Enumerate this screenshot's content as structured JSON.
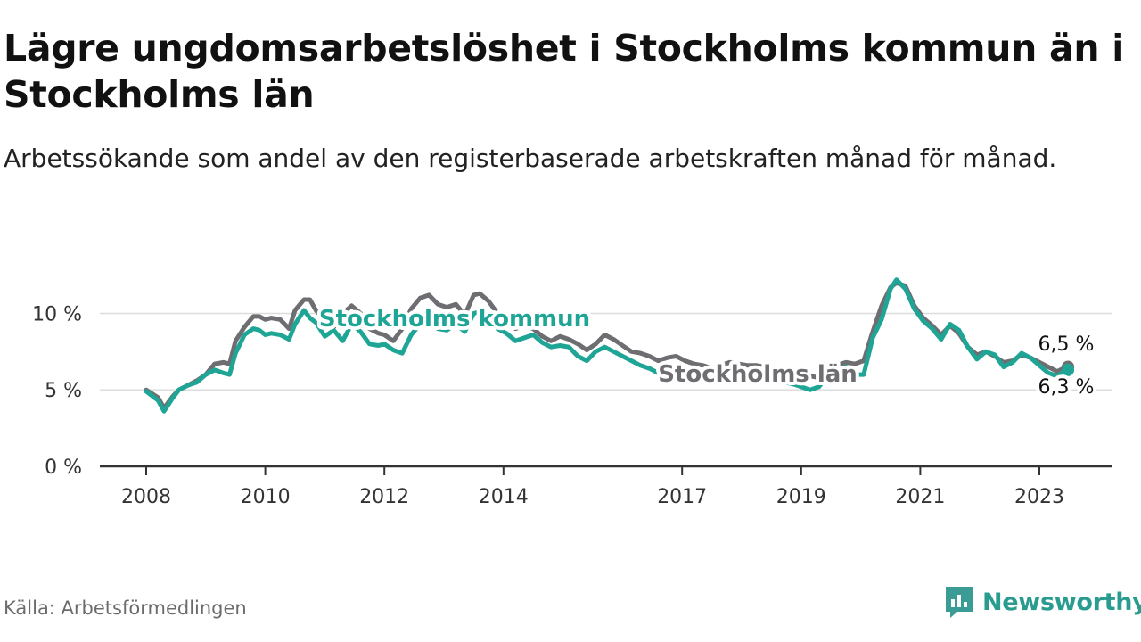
{
  "title": "Lägre ungdomsarbetslöshet i Stockholms kommun än i Stockholms län",
  "subtitle": "Arbetssökande som andel av den registerbaserade arbetskraften månad för månad.",
  "source": "Källa: Arbetsförmedlingen",
  "brand": {
    "name": "Newsworthy",
    "icon": "newsworthy-logo-icon",
    "color": "#3a9c94"
  },
  "colors": {
    "kommun": "#1fa595",
    "lan": "#6e6e72",
    "grid": "#dddddd",
    "axis": "#333333"
  },
  "chart_data": {
    "type": "line",
    "title": "Lägre ungdomsarbetslöshet i Stockholms kommun än i Stockholms län",
    "xlabel": "",
    "ylabel": "",
    "ylim": [
      0,
      13
    ],
    "xlim": [
      2007.7,
      2024.0
    ],
    "y_ticks": [
      0,
      5,
      10
    ],
    "y_tick_labels": [
      "0 %",
      "5 %",
      "10 %"
    ],
    "x_ticks": [
      2008,
      2010,
      2012,
      2014,
      2017,
      2019,
      2021,
      2023
    ],
    "x_tick_labels": [
      "2008",
      "2010",
      "2012",
      "2014",
      "2017",
      "2019",
      "2021",
      "2023"
    ],
    "gridlines": true,
    "series": [
      {
        "name": "Stockholms län",
        "label": "Stockholms län",
        "end_label": "6,5 %",
        "x": [
          2008.0,
          2008.2,
          2008.3,
          2008.45,
          2008.55,
          2008.7,
          2008.85,
          2009.0,
          2009.15,
          2009.3,
          2009.4,
          2009.5,
          2009.65,
          2009.8,
          2009.9,
          2010.0,
          2010.1,
          2010.25,
          2010.4,
          2010.5,
          2010.65,
          2010.75,
          2010.85,
          2011.0,
          2011.15,
          2011.3,
          2011.45,
          2011.6,
          2011.75,
          2011.9,
          2012.0,
          2012.15,
          2012.3,
          2012.45,
          2012.6,
          2012.75,
          2012.9,
          2013.05,
          2013.2,
          2013.35,
          2013.5,
          2013.6,
          2013.75,
          2013.9,
          2014.05,
          2014.2,
          2014.35,
          2014.5,
          2014.65,
          2014.8,
          2014.95,
          2015.1,
          2015.25,
          2015.4,
          2015.55,
          2015.7,
          2015.85,
          2016.0,
          2016.15,
          2016.3,
          2016.45,
          2016.6,
          2016.75,
          2016.9,
          2017.05,
          2017.2,
          2017.35,
          2017.5,
          2017.65,
          2017.8,
          2017.95,
          2018.1,
          2018.25,
          2018.4,
          2018.55,
          2018.7,
          2018.85,
          2019.0,
          2019.15,
          2019.3,
          2019.45,
          2019.6,
          2019.75,
          2019.9,
          2020.05,
          2020.2,
          2020.35,
          2020.5,
          2020.6,
          2020.75,
          2020.9,
          2021.05,
          2021.2,
          2021.35,
          2021.5,
          2021.65,
          2021.8,
          2021.95,
          2022.1,
          2022.25,
          2022.4,
          2022.55,
          2022.7,
          2022.85,
          2023.0,
          2023.15,
          2023.3,
          2023.45
        ],
        "values": [
          5.0,
          4.5,
          3.8,
          4.6,
          5.0,
          5.3,
          5.6,
          6.0,
          6.7,
          6.8,
          6.7,
          8.2,
          9.1,
          9.8,
          9.8,
          9.6,
          9.7,
          9.6,
          9.0,
          10.2,
          10.9,
          10.9,
          10.2,
          9.5,
          9.1,
          10.0,
          10.5,
          10.0,
          9.0,
          8.7,
          8.6,
          8.2,
          9.0,
          10.3,
          11.0,
          11.2,
          10.6,
          10.4,
          10.6,
          9.9,
          11.2,
          11.3,
          10.8,
          10.0,
          9.5,
          9.0,
          9.2,
          9.0,
          8.5,
          8.2,
          8.5,
          8.3,
          8.0,
          7.6,
          8.0,
          8.6,
          8.3,
          7.9,
          7.5,
          7.4,
          7.2,
          6.9,
          7.1,
          7.2,
          6.9,
          6.7,
          6.6,
          6.4,
          6.6,
          6.8,
          6.7,
          6.6,
          6.6,
          6.5,
          6.3,
          6.4,
          6.3,
          6.2,
          5.9,
          5.8,
          6.4,
          6.6,
          6.8,
          6.7,
          6.9,
          8.8,
          10.5,
          11.7,
          12.0,
          11.8,
          10.5,
          9.7,
          9.2,
          8.6,
          9.2,
          8.7,
          7.8,
          7.3,
          7.5,
          7.2,
          6.8,
          6.9,
          7.3,
          7.1,
          6.8,
          6.5,
          6.2,
          6.5
        ]
      },
      {
        "name": "Stockholms kommun",
        "label": "Stockholms kommun",
        "end_label": "6,3 %",
        "x": [
          2008.0,
          2008.2,
          2008.3,
          2008.45,
          2008.55,
          2008.7,
          2008.85,
          2009.0,
          2009.15,
          2009.3,
          2009.4,
          2009.5,
          2009.65,
          2009.8,
          2009.9,
          2010.0,
          2010.1,
          2010.25,
          2010.4,
          2010.5,
          2010.65,
          2010.75,
          2010.85,
          2011.0,
          2011.15,
          2011.3,
          2011.45,
          2011.6,
          2011.75,
          2011.9,
          2012.0,
          2012.15,
          2012.3,
          2012.45,
          2012.6,
          2012.75,
          2012.9,
          2013.05,
          2013.2,
          2013.35,
          2013.5,
          2013.6,
          2013.75,
          2013.9,
          2014.05,
          2014.2,
          2014.35,
          2014.5,
          2014.65,
          2014.8,
          2014.95,
          2015.1,
          2015.25,
          2015.4,
          2015.55,
          2015.7,
          2015.85,
          2016.0,
          2016.15,
          2016.3,
          2016.45,
          2016.6,
          2016.75,
          2016.9,
          2017.05,
          2017.2,
          2017.35,
          2017.5,
          2017.65,
          2017.8,
          2017.95,
          2018.1,
          2018.25,
          2018.4,
          2018.55,
          2018.7,
          2018.85,
          2019.0,
          2019.15,
          2019.3,
          2019.45,
          2019.6,
          2019.75,
          2019.9,
          2020.05,
          2020.2,
          2020.35,
          2020.5,
          2020.6,
          2020.75,
          2020.9,
          2021.05,
          2021.2,
          2021.35,
          2021.5,
          2021.65,
          2021.8,
          2021.95,
          2022.1,
          2022.25,
          2022.4,
          2022.55,
          2022.7,
          2022.85,
          2023.0,
          2023.15,
          2023.3,
          2023.45
        ],
        "values": [
          4.9,
          4.3,
          3.6,
          4.5,
          5.0,
          5.3,
          5.5,
          6.0,
          6.3,
          6.1,
          6.0,
          7.4,
          8.6,
          9.0,
          8.9,
          8.6,
          8.7,
          8.6,
          8.3,
          9.3,
          10.2,
          9.7,
          9.4,
          8.5,
          8.9,
          8.2,
          9.3,
          8.8,
          8.0,
          7.9,
          8.0,
          7.6,
          7.4,
          8.6,
          9.3,
          9.7,
          9.0,
          8.9,
          9.3,
          8.8,
          10.0,
          10.1,
          9.5,
          9.0,
          8.7,
          8.2,
          8.4,
          8.6,
          8.1,
          7.8,
          7.9,
          7.8,
          7.2,
          6.9,
          7.5,
          7.8,
          7.5,
          7.2,
          6.9,
          6.6,
          6.4,
          6.1,
          6.4,
          6.6,
          6.4,
          6.2,
          6.1,
          5.9,
          6.0,
          6.1,
          6.2,
          6.0,
          5.9,
          5.7,
          5.6,
          5.5,
          5.4,
          5.2,
          5.0,
          5.2,
          6.0,
          6.3,
          6.5,
          6.0,
          6.0,
          8.4,
          9.6,
          11.6,
          12.2,
          11.6,
          10.3,
          9.5,
          9.0,
          8.3,
          9.3,
          8.9,
          7.8,
          7.0,
          7.5,
          7.3,
          6.5,
          6.8,
          7.4,
          7.1,
          6.6,
          6.1,
          5.9,
          6.3
        ]
      }
    ]
  }
}
